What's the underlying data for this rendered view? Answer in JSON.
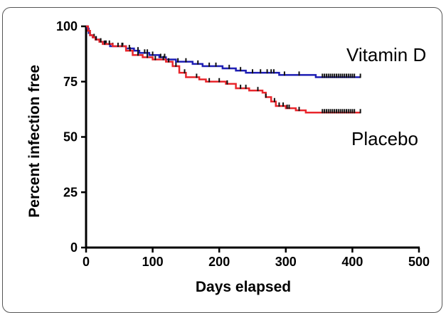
{
  "chart_data": {
    "type": "line",
    "subtype": "kaplan-meier step curve with censor marks",
    "xlabel": "Days elapsed",
    "ylabel": "Percent infection free",
    "xlim": [
      0,
      500
    ],
    "ylim": [
      0,
      100
    ],
    "xticks": [
      0,
      100,
      200,
      300,
      400,
      500
    ],
    "yticks": [
      0,
      25,
      50,
      75,
      100
    ],
    "grid": false,
    "series": [
      {
        "name": "Vitamin D",
        "color": "#1f1fb4",
        "steps": [
          [
            0,
            100
          ],
          [
            2,
            99
          ],
          [
            4,
            97
          ],
          [
            6,
            96
          ],
          [
            10,
            95
          ],
          [
            15,
            94
          ],
          [
            20,
            93
          ],
          [
            28,
            92
          ],
          [
            36,
            91
          ],
          [
            60,
            90
          ],
          [
            72,
            89
          ],
          [
            80,
            88
          ],
          [
            95,
            87
          ],
          [
            110,
            86
          ],
          [
            120,
            85
          ],
          [
            135,
            84
          ],
          [
            160,
            83
          ],
          [
            175,
            82
          ],
          [
            205,
            81
          ],
          [
            225,
            80
          ],
          [
            240,
            79
          ],
          [
            290,
            78
          ],
          [
            345,
            77
          ],
          [
            412,
            77
          ]
        ],
        "censor_x": [
          12,
          22,
          30,
          40,
          55,
          65,
          78,
          88,
          92,
          100,
          112,
          118,
          138,
          150,
          168,
          185,
          195,
          215,
          232,
          250,
          262,
          272,
          278,
          282,
          298,
          320,
          355,
          358,
          361,
          364,
          367,
          370,
          373,
          376,
          379,
          382,
          385,
          388,
          391,
          394,
          397,
          400,
          403,
          412
        ]
      },
      {
        "name": "Placebo",
        "color": "#e8262c",
        "steps": [
          [
            0,
            100
          ],
          [
            3,
            98
          ],
          [
            6,
            96
          ],
          [
            10,
            95
          ],
          [
            14,
            94
          ],
          [
            20,
            93
          ],
          [
            25,
            92
          ],
          [
            40,
            91
          ],
          [
            60,
            89
          ],
          [
            70,
            87
          ],
          [
            85,
            86
          ],
          [
            100,
            85
          ],
          [
            120,
            84
          ],
          [
            130,
            82
          ],
          [
            140,
            79
          ],
          [
            150,
            77
          ],
          [
            170,
            76
          ],
          [
            180,
            75
          ],
          [
            210,
            74
          ],
          [
            225,
            72
          ],
          [
            245,
            71
          ],
          [
            265,
            70
          ],
          [
            270,
            68
          ],
          [
            278,
            66
          ],
          [
            285,
            64
          ],
          [
            300,
            63
          ],
          [
            315,
            62
          ],
          [
            330,
            61
          ],
          [
            412,
            61
          ]
        ],
        "censor_x": [
          15,
          22,
          28,
          35,
          48,
          54,
          66,
          78,
          92,
          104,
          116,
          124,
          135,
          148,
          166,
          185,
          200,
          212,
          232,
          240,
          258,
          270,
          283,
          290,
          296,
          302,
          305,
          320,
          355,
          358,
          361,
          364,
          367,
          370,
          373,
          376,
          379,
          382,
          385,
          388,
          391,
          394,
          397,
          400,
          403,
          412
        ]
      }
    ],
    "annotations": [
      {
        "text": "Vitamin D",
        "target_series": "Vitamin D"
      },
      {
        "text": "Placebo",
        "target_series": "Placebo"
      }
    ]
  }
}
